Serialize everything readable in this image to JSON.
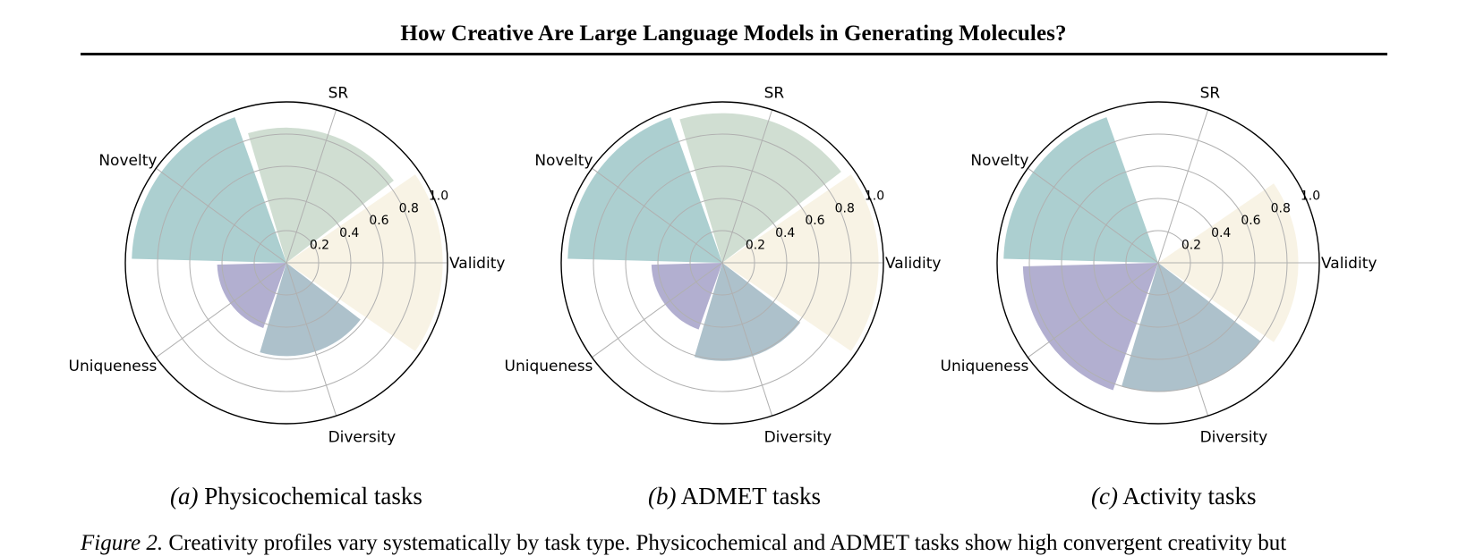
{
  "header": {
    "title": "How Creative Are Large Language Models in Generating Molecules?"
  },
  "chart_data": [
    {
      "type": "polar-bar",
      "subfigure": "(a)",
      "caption": "Physicochemical tasks",
      "categories": [
        "Validity",
        "SR",
        "Novelty",
        "Uniqueness",
        "Diversity"
      ],
      "values": [
        0.97,
        0.84,
        0.96,
        0.43,
        0.58
      ],
      "colors": [
        "#f8f2e4",
        "#cddcd0",
        "#a8ccce",
        "#aeabcd",
        "#a9bec8"
      ],
      "radial_ticks": [
        "0.2",
        "0.4",
        "0.6",
        "0.8",
        "1.0"
      ],
      "rlim": [
        0,
        1.0
      ]
    },
    {
      "type": "polar-bar",
      "subfigure": "(b)",
      "caption": "ADMET tasks",
      "categories": [
        "Validity",
        "SR",
        "Novelty",
        "Uniqueness",
        "Diversity"
      ],
      "values": [
        0.97,
        0.93,
        0.96,
        0.44,
        0.61
      ],
      "colors": [
        "#f8f2e4",
        "#cddcd0",
        "#a8ccce",
        "#aeabcd",
        "#a9bec8"
      ],
      "radial_ticks": [
        "0.2",
        "0.4",
        "0.6",
        "0.8",
        "1.0"
      ],
      "rlim": [
        0,
        1.0
      ]
    },
    {
      "type": "polar-bar",
      "subfigure": "(c)",
      "caption": "Activity tasks",
      "categories": [
        "Validity",
        "SR",
        "Novelty",
        "Uniqueness",
        "Diversity"
      ],
      "values": [
        0.87,
        0.0,
        0.96,
        0.84,
        0.8
      ],
      "colors": [
        "#f8f2e4",
        "#cddcd0",
        "#a8ccce",
        "#aeabcd",
        "#a9bec8"
      ],
      "radial_ticks": [
        "0.2",
        "0.4",
        "0.6",
        "0.8",
        "1.0"
      ],
      "rlim": [
        0,
        1.0
      ]
    }
  ],
  "figure_caption": {
    "label": "Figure 2.",
    "text": "Creativity profiles vary systematically by task type. Physicochemical and ADMET tasks show high convergent creativity but"
  }
}
